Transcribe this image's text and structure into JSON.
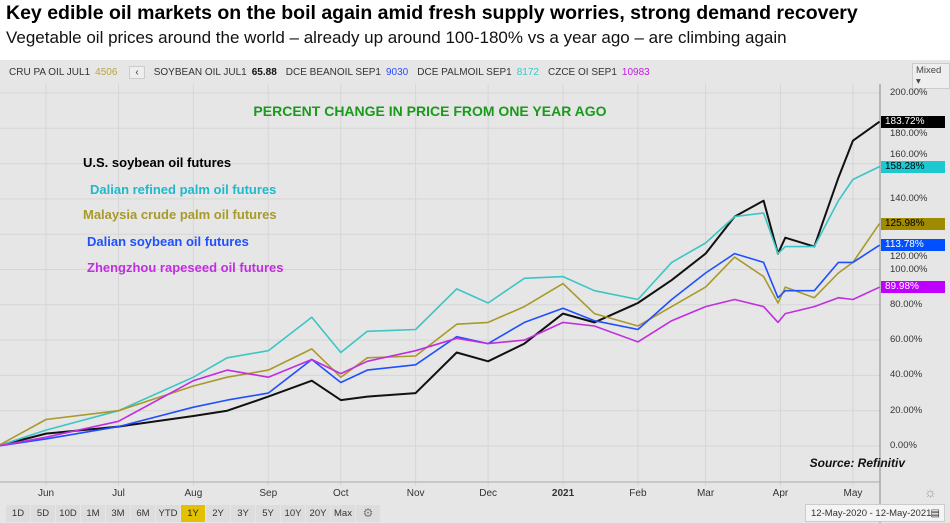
{
  "header": {
    "title": "Key edible oil markets on the boil again amid fresh supply worries, strong demand recovery",
    "subtitle": "Vegetable oil prices around the world – already up around 100-180% vs a year ago – are climbing again"
  },
  "ticker": [
    {
      "name": "CRU PA OIL JUL1",
      "value": "4506",
      "color": "#b8a640"
    },
    {
      "name": "SOYBEAN OIL JUL1",
      "value": "65.88",
      "color": "#111111"
    },
    {
      "name": "DCE BEANOIL SEP1",
      "value": "9030",
      "color": "#2a4dff"
    },
    {
      "name": "DCE PALMOIL SEP1",
      "value": "8172",
      "color": "#3cc8c8"
    },
    {
      "name": "CZCE OI SEP1",
      "value": "10983",
      "color": "#c020e0"
    }
  ],
  "ticker_back": "‹",
  "scale_mode": "Mixed ▾",
  "toolbar": {
    "buttons": [
      "1D",
      "5D",
      "10D",
      "1M",
      "3M",
      "6M",
      "YTD",
      "1Y",
      "2Y",
      "3Y",
      "5Y",
      "10Y",
      "20Y",
      "Max"
    ],
    "selected": "1Y",
    "settings_icon": "gear-icon",
    "date_range": "12-May-2020  -  12-May-2021",
    "calendar_icon": "calendar-icon"
  },
  "chart_data": {
    "type": "line",
    "title": "PERCENT CHANGE IN PRICE FROM ONE YEAR AGO",
    "source": "Source: Refinitiv",
    "xlabel": "",
    "ylabel": "",
    "xlim": [
      "2020-05-12",
      "2021-05-12"
    ],
    "ylim": [
      0,
      200
    ],
    "y_ticks": [
      "0.00%",
      "20.00%",
      "40.00%",
      "60.00%",
      "80.00%",
      "100.00%",
      "120.00%",
      "140.00%",
      "160.00%",
      "180.00%",
      "200.00%"
    ],
    "x_ticks": [
      {
        "label": "Jun",
        "date": "2020-06-01"
      },
      {
        "label": "Jul",
        "date": "2020-07-01"
      },
      {
        "label": "Aug",
        "date": "2020-08-01"
      },
      {
        "label": "Sep",
        "date": "2020-09-01"
      },
      {
        "label": "Oct",
        "date": "2020-10-01"
      },
      {
        "label": "Nov",
        "date": "2020-11-01"
      },
      {
        "label": "Dec",
        "date": "2020-12-01"
      },
      {
        "label": "2021",
        "date": "2021-01-01"
      },
      {
        "label": "Feb",
        "date": "2021-02-01"
      },
      {
        "label": "Mar",
        "date": "2021-03-01"
      },
      {
        "label": "Apr",
        "date": "2021-04-01"
      },
      {
        "label": "May",
        "date": "2021-05-01"
      }
    ],
    "grid": true,
    "x": [
      "2020-05-12",
      "2020-06-01",
      "2020-07-01",
      "2020-08-01",
      "2020-08-15",
      "2020-09-01",
      "2020-09-19",
      "2020-10-01",
      "2020-10-12",
      "2020-11-01",
      "2020-11-18",
      "2020-12-01",
      "2020-12-16",
      "2021-01-01",
      "2021-01-14",
      "2021-02-01",
      "2021-02-15",
      "2021-03-01",
      "2021-03-13",
      "2021-03-25",
      "2021-03-31",
      "2021-04-03",
      "2021-04-15",
      "2021-04-25",
      "2021-05-01",
      "2021-05-12"
    ],
    "series": [
      {
        "name": "U.S. soybean oil futures",
        "color": "#111111",
        "last_label": "183.72%",
        "tag_bg": "#000000",
        "tag_fg": "#ffffff",
        "values": [
          0,
          7,
          11,
          17,
          20,
          28,
          37,
          26,
          28,
          30,
          53,
          48,
          58,
          75,
          70,
          81,
          94,
          109,
          130,
          139,
          109,
          118,
          113,
          152,
          173,
          183.72
        ]
      },
      {
        "name": "Dalian refined palm oil futures",
        "color": "#3cc5c5",
        "last_label": "158.28%",
        "tag_bg": "#1ec8d0",
        "tag_fg": "#000000",
        "values": [
          0,
          9,
          20,
          39,
          50,
          54,
          73,
          53,
          65,
          66,
          89,
          81,
          95,
          96,
          88,
          83,
          104,
          115,
          130,
          132,
          109,
          113,
          113,
          139,
          151,
          158.28
        ]
      },
      {
        "name": "Malaysia crude palm oil futures",
        "color": "#a89a2a",
        "last_label": "125.98%",
        "tag_bg": "#a08a00",
        "tag_fg": "#000000",
        "values": [
          0,
          15,
          20,
          34,
          39,
          43,
          55,
          39,
          50,
          51,
          69,
          70,
          79,
          92,
          75,
          68,
          79,
          90,
          107,
          96,
          81,
          90,
          84,
          98,
          104,
          125.98
        ]
      },
      {
        "name": "Dalian soybean oil futures",
        "color": "#1f4fff",
        "last_label": "113.78%",
        "tag_bg": "#0050ff",
        "tag_fg": "#ffffff",
        "values": [
          0,
          4,
          11,
          22,
          26,
          30,
          49,
          36,
          43,
          46,
          62,
          58,
          70,
          78,
          71,
          66,
          83,
          98,
          109,
          104,
          84,
          88,
          88,
          104,
          104,
          113.78
        ]
      },
      {
        "name": "Zhengzhou rapeseed oil futures",
        "color": "#c02ee0",
        "last_label": "89.98%",
        "tag_bg": "#c000ff",
        "tag_fg": "#ffffff",
        "values": [
          0,
          5,
          14,
          37,
          43,
          39,
          49,
          41,
          48,
          54,
          61,
          58,
          60,
          70,
          68,
          59,
          71,
          79,
          83,
          79,
          70,
          75,
          79,
          84,
          83,
          89.98
        ]
      }
    ]
  }
}
